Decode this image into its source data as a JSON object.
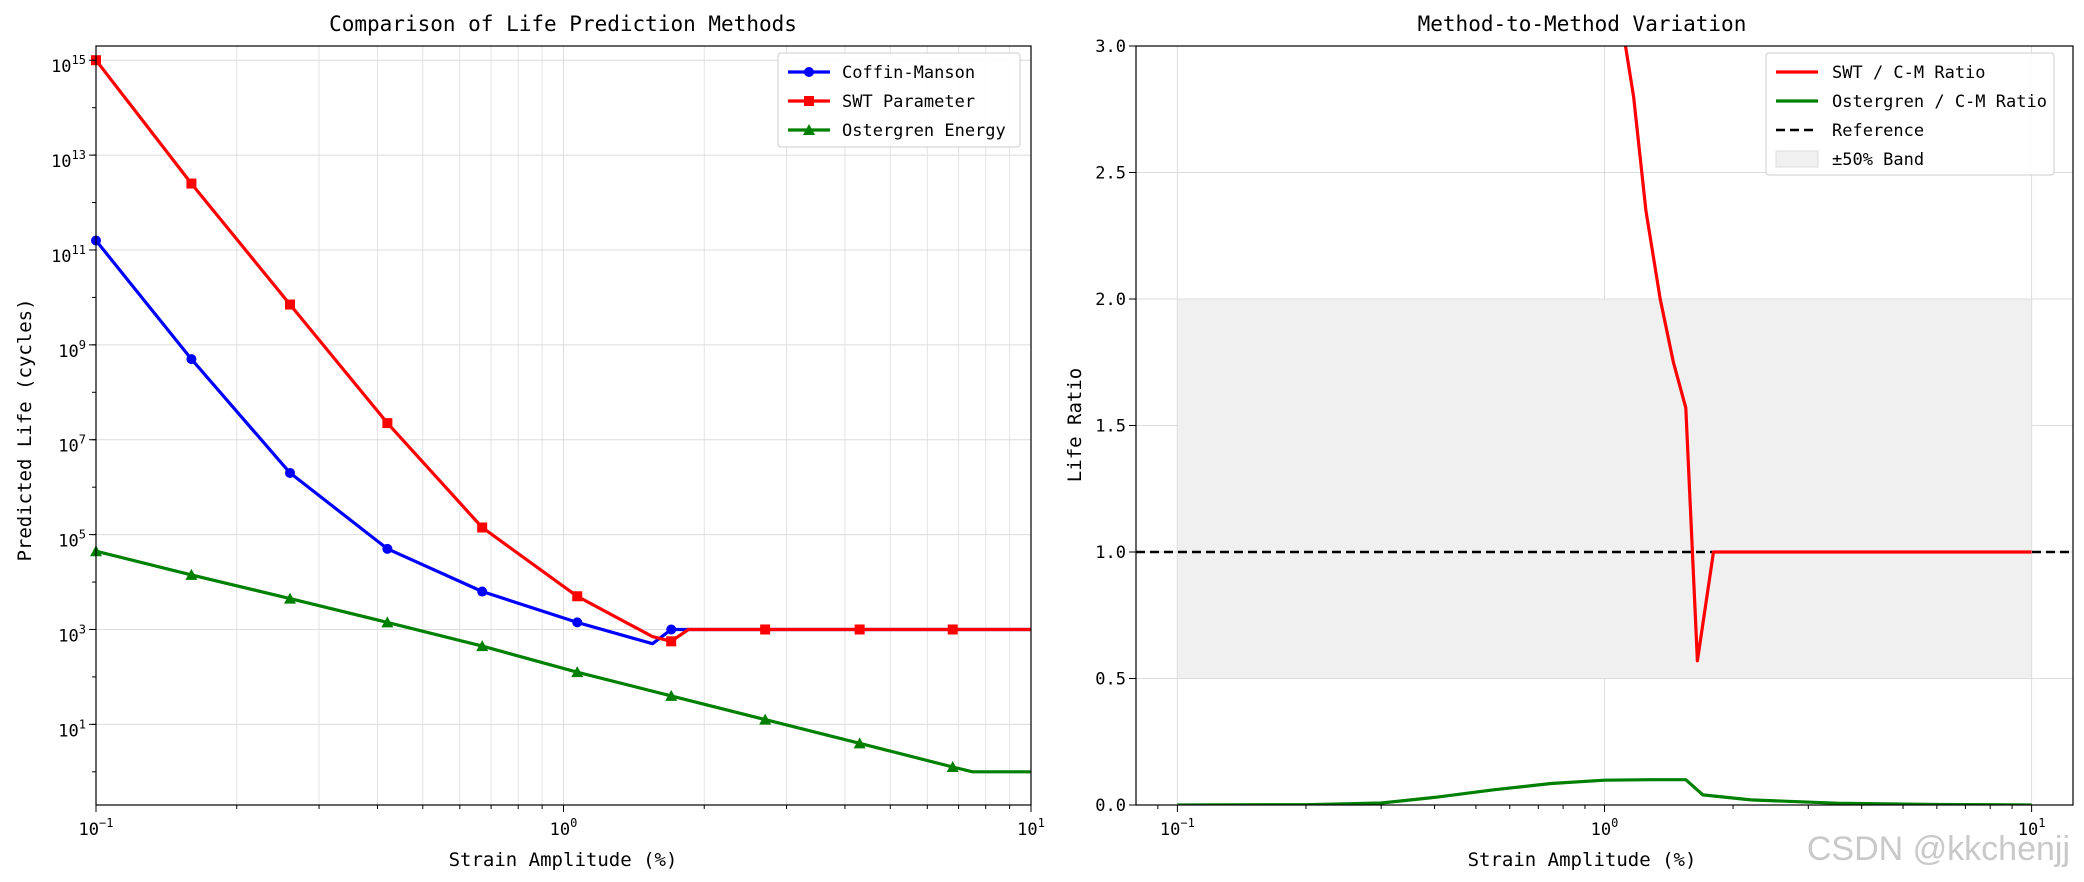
{
  "watermark": "CSDN @kkchenjj",
  "chart_data": [
    {
      "type": "line",
      "title": "Comparison of Life Prediction Methods",
      "xlabel": "Strain Amplitude (%)",
      "ylabel": "Predicted Life (cycles)",
      "xscale": "log",
      "yscale": "log",
      "xlim": [
        0.1,
        10
      ],
      "ylim_exp": [
        -0.7,
        15.3
      ],
      "xticks": [
        {
          "v": 0.1,
          "label": "10",
          "exp": "−1"
        },
        {
          "v": 1,
          "label": "10",
          "exp": "0"
        },
        {
          "v": 10,
          "label": "10",
          "exp": "1"
        }
      ],
      "yticks": [
        {
          "v": 1,
          "label": "10",
          "exp": "1"
        },
        {
          "v": 3,
          "label": "10",
          "exp": "3"
        },
        {
          "v": 5,
          "label": "10",
          "exp": "5"
        },
        {
          "v": 7,
          "label": "10",
          "exp": "7"
        },
        {
          "v": 9,
          "label": "10",
          "exp": "9"
        },
        {
          "v": 11,
          "label": "10",
          "exp": "11"
        },
        {
          "v": 13,
          "label": "10",
          "exp": "13"
        },
        {
          "v": 15,
          "label": "10",
          "exp": "15"
        }
      ],
      "grid": true,
      "legend_position": "top-right",
      "series": [
        {
          "name": "Coffin-Manson",
          "color": "#0000ff",
          "marker": "circle",
          "x": [
            0.1,
            0.16,
            0.26,
            0.42,
            0.67,
            1.07,
            1.55,
            1.7,
            1.85,
            10
          ],
          "log_y": [
            11.2,
            8.7,
            6.3,
            4.7,
            3.8,
            3.15,
            2.7,
            3.0,
            3.0,
            3.0
          ],
          "markers_x": [
            0.1,
            0.16,
            0.26,
            0.42,
            0.67,
            1.07,
            1.7
          ]
        },
        {
          "name": "SWT Parameter",
          "color": "#ff0000",
          "marker": "square",
          "x": [
            0.1,
            0.16,
            0.26,
            0.42,
            0.67,
            1.07,
            1.55,
            1.7,
            1.85,
            2.7,
            4.3,
            6.8,
            10
          ],
          "log_y": [
            15.0,
            12.4,
            9.85,
            7.35,
            5.15,
            3.7,
            2.85,
            2.75,
            3.0,
            3.0,
            3.0,
            3.0,
            3.0
          ],
          "markers_x": [
            0.1,
            0.16,
            0.26,
            0.42,
            0.67,
            1.07,
            1.7,
            2.7,
            4.3,
            6.8
          ]
        },
        {
          "name": "Ostergren Energy",
          "color": "#008000",
          "marker": "triangle",
          "x": [
            0.1,
            0.16,
            0.26,
            0.42,
            0.67,
            1.07,
            1.7,
            2.7,
            4.3,
            6.8,
            7.5,
            10
          ],
          "log_y": [
            4.65,
            4.15,
            3.65,
            3.15,
            2.65,
            2.1,
            1.6,
            1.1,
            0.6,
            0.1,
            0.0,
            0.0
          ],
          "markers_x": [
            0.1,
            0.16,
            0.26,
            0.42,
            0.67,
            1.07,
            1.7,
            2.7,
            4.3,
            6.8
          ]
        }
      ]
    },
    {
      "type": "line",
      "title": "Method-to-Method Variation",
      "xlabel": "Strain Amplitude (%)",
      "ylabel": "Life Ratio",
      "xscale": "log",
      "xlim": [
        0.08,
        12.5
      ],
      "ylim": [
        0,
        3.0
      ],
      "xticks": [
        {
          "v": 0.1,
          "label": "10",
          "exp": "−1"
        },
        {
          "v": 1,
          "label": "10",
          "exp": "0"
        },
        {
          "v": 10,
          "label": "10",
          "exp": "1"
        }
      ],
      "yticks": [
        {
          "v": 0.0,
          "label": "0.0"
        },
        {
          "v": 0.5,
          "label": "0.5"
        },
        {
          "v": 1.0,
          "label": "1.0"
        },
        {
          "v": 1.5,
          "label": "1.5"
        },
        {
          "v": 2.0,
          "label": "2.0"
        },
        {
          "v": 2.5,
          "label": "2.5"
        },
        {
          "v": 3.0,
          "label": "3.0"
        }
      ],
      "grid": true,
      "legend_position": "top-right",
      "band": {
        "name": "±50% Band",
        "x": [
          0.1,
          10
        ],
        "y": [
          0.5,
          2.0
        ],
        "color": "#f0f0f0"
      },
      "reference": {
        "name": "Reference",
        "y": 1.0,
        "color": "#000000"
      },
      "series": [
        {
          "name": "SWT / C-M Ratio",
          "color": "#ff0000",
          "x": [
            1.12,
            1.17,
            1.25,
            1.35,
            1.45,
            1.55,
            1.65,
            1.8,
            10
          ],
          "y": [
            3.0,
            2.8,
            2.35,
            2.0,
            1.75,
            1.57,
            0.57,
            1.0,
            1.0
          ]
        },
        {
          "name": "Ostergren / C-M Ratio",
          "color": "#008000",
          "x": [
            0.1,
            0.2,
            0.3,
            0.4,
            0.55,
            0.75,
            1.0,
            1.3,
            1.55,
            1.7,
            2.2,
            3.5,
            6,
            10
          ],
          "y": [
            0.0,
            0.001,
            0.008,
            0.03,
            0.06,
            0.085,
            0.098,
            0.1,
            0.1,
            0.04,
            0.02,
            0.007,
            0.002,
            0.0
          ]
        }
      ]
    }
  ]
}
